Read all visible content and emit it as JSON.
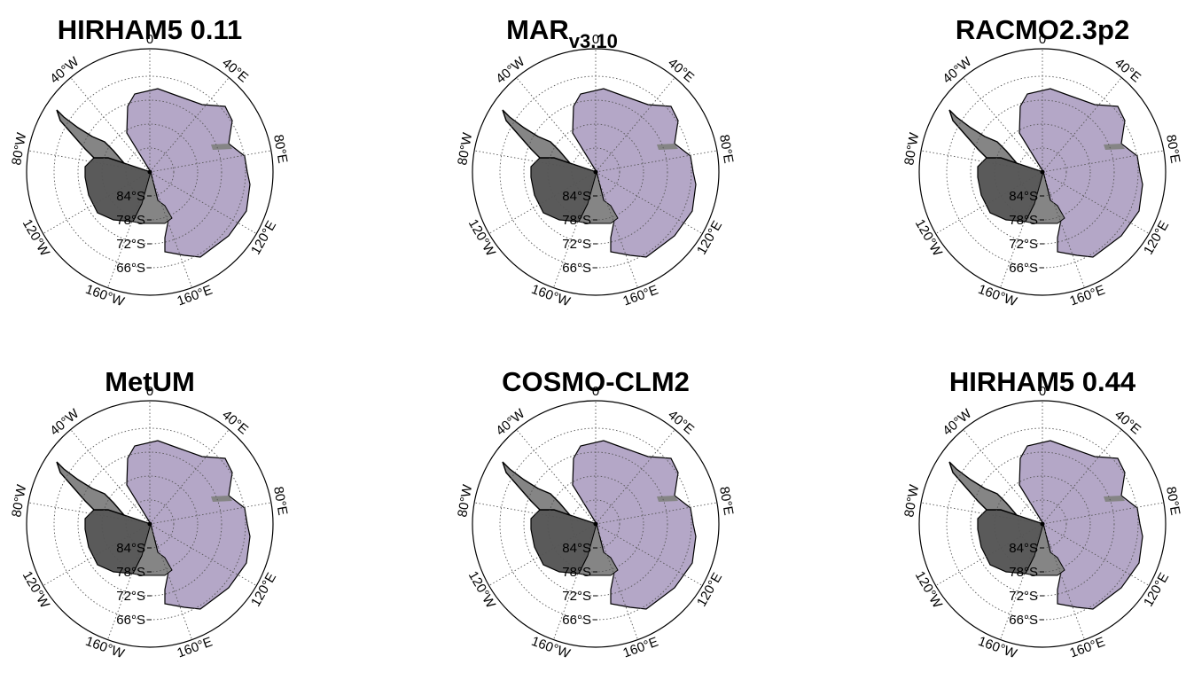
{
  "colors": {
    "east_antarctica": "#b4a7c7",
    "west_antarctica": "#5a5a5a",
    "peninsula": "#858585",
    "coast": "#000000",
    "grid": "#555555"
  },
  "panels": [
    {
      "title": "HIRHAM5 0.11",
      "meridian_labels": [
        "0",
        "40°E",
        "80°E",
        "120°E",
        "160°E",
        "160°W",
        "120°W",
        "80°W",
        "40°W"
      ],
      "latitude_labels": [
        "84°S",
        "78°S",
        "72°S",
        "66°S"
      ]
    },
    {
      "title": "MAR",
      "title_suffix": "v3.10",
      "meridian_labels": [
        "0",
        "40°E",
        "80°E",
        "120°E",
        "160°E",
        "160°W",
        "120°W",
        "80°W",
        "40°W"
      ],
      "latitude_labels": [
        "84°S",
        "78°S",
        "72°S",
        "66°S"
      ]
    },
    {
      "title": "RACMO2.3p2",
      "meridian_labels": [
        "0",
        "40°E",
        "80°E",
        "120°E",
        "160°E",
        "160°W",
        "120°W",
        "80°W",
        "40°W"
      ],
      "latitude_labels": [
        "84°S",
        "78°S",
        "72°S",
        "66°S"
      ]
    },
    {
      "title": "MetUM",
      "meridian_labels": [
        "0",
        "40°E",
        "80°E",
        "120°E",
        "160°E",
        "160°W",
        "120°W",
        "80°W",
        "40°W"
      ],
      "latitude_labels": [
        "84°S",
        "78°S",
        "72°S",
        "66°S"
      ]
    },
    {
      "title": "COSMO-CLM2",
      "meridian_labels": [
        "0",
        "40°E",
        "80°E",
        "120°E",
        "160°E",
        "160°W",
        "120°W",
        "80°W",
        "40°W"
      ],
      "latitude_labels": [
        "84°S",
        "78°S",
        "72°S",
        "66°S"
      ]
    },
    {
      "title": "HIRHAM5 0.44",
      "meridian_labels": [
        "0",
        "40°E",
        "80°E",
        "120°E",
        "160°E",
        "160°W",
        "120°W",
        "80°W",
        "40°W"
      ],
      "latitude_labels": [
        "84°S",
        "78°S",
        "72°S",
        "66°S"
      ]
    }
  ]
}
